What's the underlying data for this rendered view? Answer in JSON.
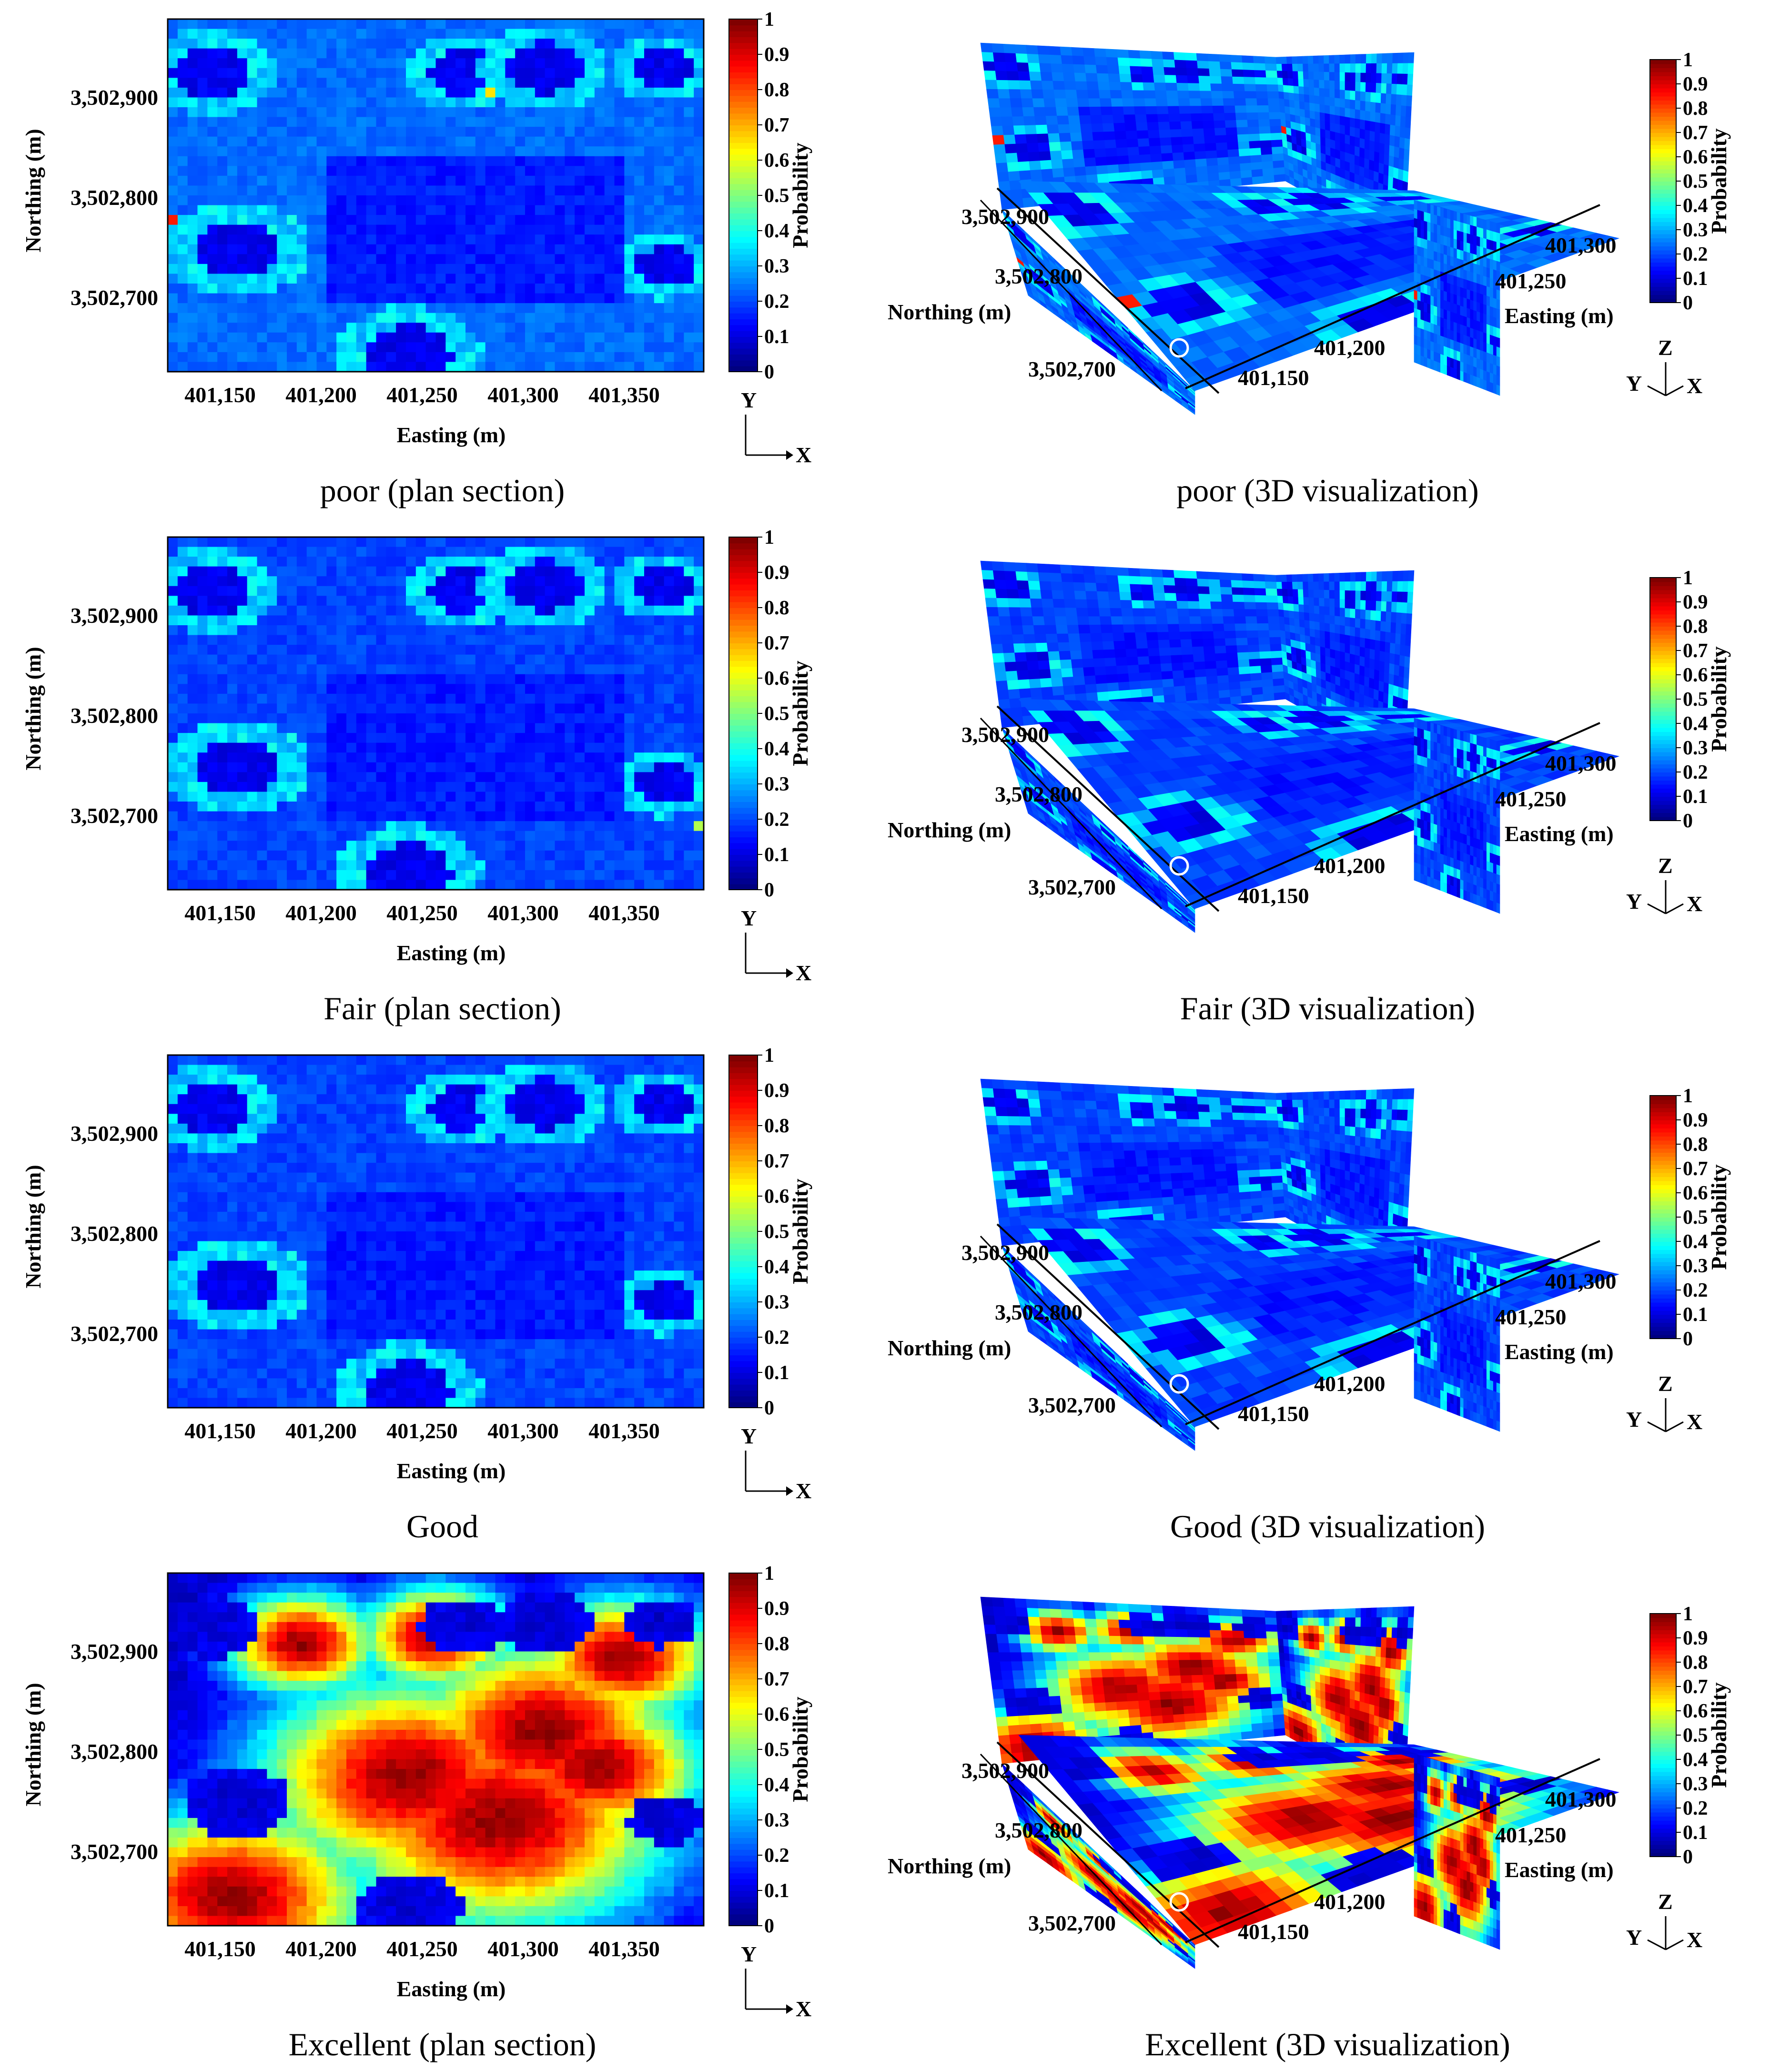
{
  "chart_data": [
    {
      "type": "heatmap",
      "view": "plan section",
      "condition": "poor",
      "caption": "poor (plan section)",
      "xlabel": "Easting (m)",
      "ylabel": "Northing (m)",
      "x_ticks": [
        "401,150",
        "401,200",
        "401,250",
        "401,300",
        "401,350"
      ],
      "y_ticks": [
        "3,502,900",
        "3,502,800",
        "3,502,700"
      ],
      "colorbar_label": "Probability",
      "colorbar_ticks": [
        "1",
        "0.9",
        "0.8",
        "0.7",
        "0.6",
        "0.5",
        "0.4",
        "0.3",
        "0.2",
        "0.1",
        "0"
      ],
      "axis_indicator": {
        "y": "Y",
        "x": "X"
      },
      "dominant_range": [
        0,
        0.35
      ]
    },
    {
      "type": "heatmap",
      "view": "3D visualization",
      "condition": "poor",
      "caption": "poor (3D visualization)",
      "northing_ticks": [
        "3,502,900",
        "3,502,800",
        "3,502,700"
      ],
      "easting_ticks": [
        "401,300",
        "401,250",
        "401,200",
        "401,150"
      ],
      "northing_label": "Northing (m)",
      "easting_label": "Easting (m)",
      "colorbar_label": "Probability",
      "colorbar_ticks": [
        "1",
        "0.9",
        "0.8",
        "0.7",
        "0.6",
        "0.5",
        "0.4",
        "0.3",
        "0.2",
        "0.1",
        "0"
      ],
      "axis_indicator": {
        "z": "Z",
        "y": "Y",
        "x": "X"
      },
      "dominant_range": [
        0,
        0.35
      ]
    },
    {
      "type": "heatmap",
      "view": "plan section",
      "condition": "Fair",
      "caption": "Fair (plan section)",
      "xlabel": "Easting (m)",
      "ylabel": "Northing (m)",
      "x_ticks": [
        "401,150",
        "401,200",
        "401,250",
        "401,300",
        "401,350"
      ],
      "y_ticks": [
        "3,502,900",
        "3,502,800",
        "3,502,700"
      ],
      "colorbar_label": "Probability",
      "colorbar_ticks": [
        "1",
        "0.9",
        "0.8",
        "0.7",
        "0.6",
        "0.5",
        "0.4",
        "0.3",
        "0.2",
        "0.1",
        "0"
      ],
      "axis_indicator": {
        "y": "Y",
        "x": "X"
      },
      "dominant_range": [
        0,
        0.3
      ]
    },
    {
      "type": "heatmap",
      "view": "3D visualization",
      "condition": "Fair",
      "caption": "Fair (3D visualization)",
      "northing_ticks": [
        "3,502,900",
        "3,502,800",
        "3,502,700"
      ],
      "easting_ticks": [
        "401,300",
        "401,250",
        "401,200",
        "401,150"
      ],
      "northing_label": "Northing (m)",
      "easting_label": "Easting (m)",
      "colorbar_label": "Probability",
      "colorbar_ticks": [
        "1",
        "0.9",
        "0.8",
        "0.7",
        "0.6",
        "0.5",
        "0.4",
        "0.3",
        "0.2",
        "0.1",
        "0"
      ],
      "axis_indicator": {
        "z": "Z",
        "y": "Y",
        "x": "X"
      },
      "dominant_range": [
        0,
        0.3
      ]
    },
    {
      "type": "heatmap",
      "view": "plan section",
      "condition": "Good",
      "caption": "Good",
      "xlabel": "Easting (m)",
      "ylabel": "Northing (m)",
      "x_ticks": [
        "401,150",
        "401,200",
        "401,250",
        "401,300",
        "401,350"
      ],
      "y_ticks": [
        "3,502,900",
        "3,502,800",
        "3,502,700"
      ],
      "colorbar_label": "Probability",
      "colorbar_ticks": [
        "1",
        "0.9",
        "0.8",
        "0.7",
        "0.6",
        "0.5",
        "0.4",
        "0.3",
        "0.2",
        "0.1",
        "0"
      ],
      "axis_indicator": {
        "y": "Y",
        "x": "X"
      },
      "dominant_range": [
        0,
        0.3
      ]
    },
    {
      "type": "heatmap",
      "view": "3D visualization",
      "condition": "Good",
      "caption": "Good (3D visualization)",
      "northing_ticks": [
        "3,502,900",
        "3,502,800",
        "3,502,700"
      ],
      "easting_ticks": [
        "401,300",
        "401,250",
        "401,200",
        "401,150"
      ],
      "northing_label": "Northing (m)",
      "easting_label": "Easting (m)",
      "colorbar_label": "Probability",
      "colorbar_ticks": [
        "1",
        "0.9",
        "0.8",
        "0.7",
        "0.6",
        "0.5",
        "0.4",
        "0.3",
        "0.2",
        "0.1",
        "0"
      ],
      "axis_indicator": {
        "z": "Z",
        "y": "Y",
        "x": "X"
      },
      "dominant_range": [
        0,
        0.35
      ]
    },
    {
      "type": "heatmap",
      "view": "plan section",
      "condition": "Excellent",
      "caption": "Excellent (plan section)",
      "xlabel": "Easting (m)",
      "ylabel": "Northing (m)",
      "x_ticks": [
        "401,150",
        "401,200",
        "401,250",
        "401,300",
        "401,350"
      ],
      "y_ticks": [
        "3,502,900",
        "3,502,800",
        "3,502,700"
      ],
      "colorbar_label": "Probability",
      "colorbar_ticks": [
        "1",
        "0.9",
        "0.8",
        "0.7",
        "0.6",
        "0.5",
        "0.4",
        "0.3",
        "0.2",
        "0.1",
        "0"
      ],
      "axis_indicator": {
        "y": "Y",
        "x": "X"
      },
      "dominant_range": [
        0,
        1
      ]
    },
    {
      "type": "heatmap",
      "view": "3D visualization",
      "condition": "Excellent",
      "caption": "Excellent (3D visualization)",
      "northing_ticks": [
        "3,502,900",
        "3,502,800",
        "3,502,700"
      ],
      "easting_ticks": [
        "401,300",
        "401,250",
        "401,200",
        "401,150"
      ],
      "northing_label": "Northing (m)",
      "easting_label": "Easting (m)",
      "colorbar_label": "Probability",
      "colorbar_ticks": [
        "1",
        "0.9",
        "0.8",
        "0.7",
        "0.6",
        "0.5",
        "0.4",
        "0.3",
        "0.2",
        "0.1",
        "0"
      ],
      "axis_indicator": {
        "z": "Z",
        "y": "Y",
        "x": "X"
      },
      "dominant_range": [
        0,
        1
      ]
    }
  ]
}
